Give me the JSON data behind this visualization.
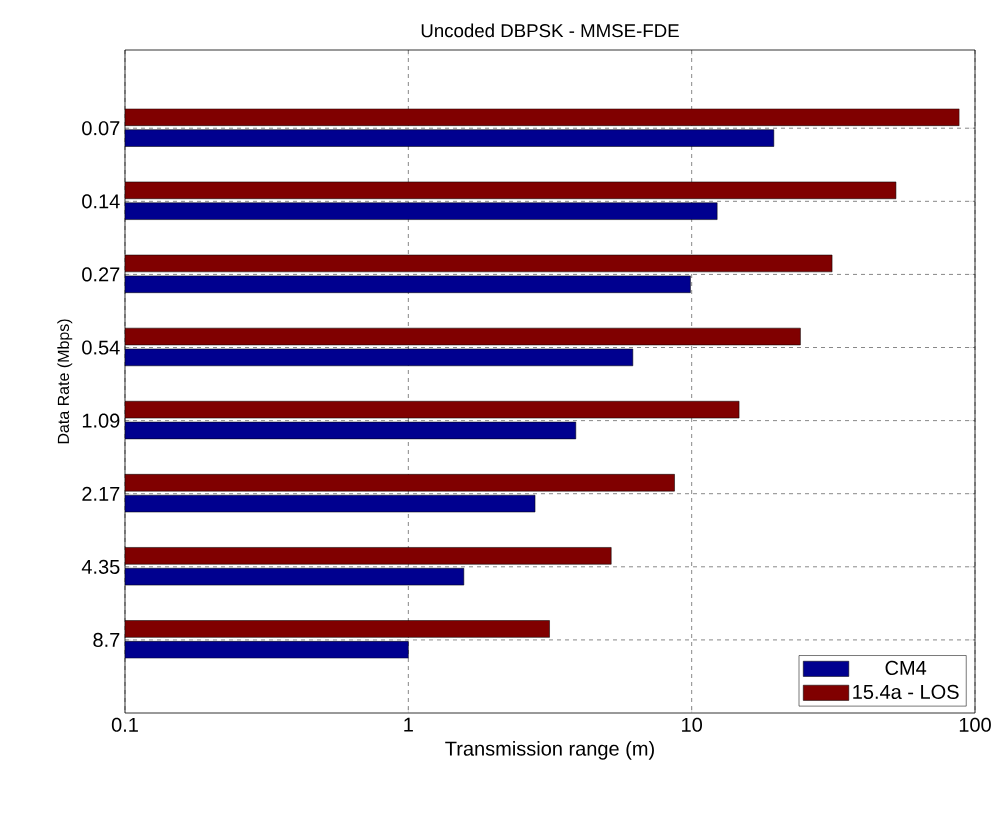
{
  "chart_data": {
    "type": "bar",
    "orientation": "horizontal",
    "title": "Uncoded DBPSK - MMSE-FDE",
    "xlabel": "Transmission range (m)",
    "ylabel": "Data Rate (Mbps)",
    "categories": [
      "0.07",
      "0.14",
      "0.27",
      "0.54",
      "1.09",
      "2.17",
      "4.35",
      "8.7"
    ],
    "series": [
      {
        "name": "CM4",
        "color": "#00008f",
        "values": [
          19.5,
          12.3,
          9.9,
          6.2,
          3.9,
          2.8,
          1.57,
          1.0
        ]
      },
      {
        "name": "15.4a - LOS",
        "color": "#800000",
        "values": [
          88,
          52.6,
          31.3,
          24.2,
          14.7,
          8.7,
          5.2,
          3.15
        ]
      }
    ],
    "xlim": [
      0.1,
      100
    ],
    "xticks": [
      0.1,
      1,
      10,
      100
    ],
    "log": "x",
    "grid": true,
    "legend": "bottom right"
  }
}
